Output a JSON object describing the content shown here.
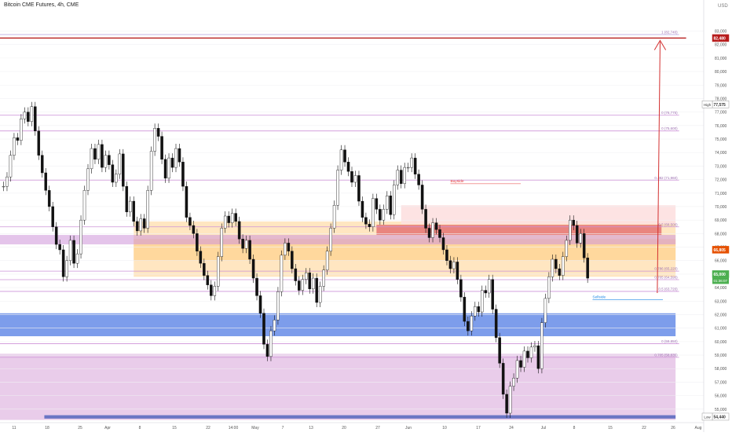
{
  "header": {
    "title": "Bitcoin CME Futures, 4h, CME",
    "currency": "USD"
  },
  "chart_data": {
    "type": "candlestick",
    "title": "Bitcoin CME Futures, 4h, CME",
    "ylim": [
      54000,
      84600
    ],
    "y_ticks": [
      55000,
      56000,
      57000,
      58000,
      59000,
      60000,
      61000,
      62000,
      63000,
      64000,
      65000,
      66000,
      67000,
      68000,
      69000,
      70000,
      71000,
      72000,
      73000,
      74000,
      75000,
      76000,
      77000,
      78000,
      79000,
      80000,
      81000,
      82000,
      83000
    ],
    "y_tick_labels": [
      "55,000",
      "56,000",
      "57,000",
      "58,000",
      "59,000",
      "60,000",
      "61,000",
      "62,000",
      "63,000",
      "64,000",
      "65,000",
      "66,000",
      "67,000",
      "68,000",
      "69,000",
      "70,000",
      "71,000",
      "72,000",
      "73,000",
      "74,000",
      "75,000",
      "76,000",
      "77,000",
      "78,000",
      "79,000",
      "80,000",
      "81,000",
      "82,000",
      "83,000"
    ],
    "x_labels": [
      "11",
      "18",
      "25",
      "Apr",
      "8",
      "15",
      "22",
      "14:00",
      "May",
      "7",
      "13",
      "20",
      "27",
      "Jun",
      "10",
      "17",
      "24",
      "Jul",
      "8",
      "15",
      "22",
      "26",
      "Aug"
    ],
    "x_tick_index": [
      0,
      1,
      2,
      3,
      4,
      5,
      6,
      7,
      8,
      9,
      10,
      11,
      12,
      13,
      14,
      15,
      16,
      17,
      18,
      19,
      20,
      21,
      22
    ],
    "price_badges": [
      {
        "label": "82,480",
        "value": 82480,
        "color": "#b71c1c"
      },
      {
        "label": "77,575",
        "value": 77575,
        "color": "#ffffff",
        "prefix": "High"
      },
      {
        "label": "66,805",
        "value": 66805,
        "color": "#e65100"
      },
      {
        "label": "65,000",
        "value": 65000,
        "color": "#4caf50",
        "sub": "01:36:07"
      },
      {
        "label": "54,440",
        "value": 54440,
        "color": "#ffffff",
        "prefix": "Low"
      }
    ],
    "fib_levels": [
      {
        "label": "1 (82,740)",
        "value": 82740,
        "color": "#b39ddb"
      },
      {
        "label": "0 (76,775)",
        "value": 76775,
        "color": "#ce93d8"
      },
      {
        "label": "0 (75,600)",
        "value": 75600,
        "color": "#ce93d8"
      },
      {
        "label": "0.382 (71,960)",
        "value": 71960,
        "color": "#ce93d8"
      },
      {
        "label": "0.5 (68,500)",
        "value": 68500,
        "color": "#ce93d8"
      },
      {
        "label": "0.786 (65,220)",
        "value": 65220,
        "color": "#ce93d8"
      },
      {
        "label": "0.705 (64,590)",
        "value": 64590,
        "color": "#ce93d8"
      },
      {
        "label": "0.5 (63,720)",
        "value": 63720,
        "color": "#ce93d8"
      },
      {
        "label": "0 (59,850)",
        "value": 59850,
        "color": "#ce93d8"
      },
      {
        "label": "0.705 (58,835)",
        "value": 58835,
        "color": "#ce93d8"
      }
    ],
    "annotations": [
      {
        "text": "Buyside",
        "x": 0.64,
        "value": 71750,
        "color": "#e53935"
      },
      {
        "text": "Sellside",
        "x": 0.842,
        "value": 63150,
        "color": "#1e88e5"
      }
    ],
    "series": [
      {
        "x": 0.0,
        "values": [
          71500,
          72200,
          73800,
          75100,
          74900,
          76500,
          77000,
          76300,
          77400,
          75600,
          73800,
          72500,
          71200,
          70000,
          68500,
          67200,
          66800,
          64800,
          66000,
          67500,
          65800,
          66500,
          69000,
          71200,
          72800,
          74300,
          73500,
          74600,
          72900,
          73800,
          73100,
          71800,
          72400,
          73900,
          71500,
          69600,
          70400,
          68900,
          68200,
          69100,
          68400,
          71200,
          74100,
          75800,
          75200,
          73500,
          72100,
          73600,
          72900,
          74300,
          73300,
          71500,
          69200,
          68600,
          68000,
          66700,
          65800,
          64900,
          64200,
          63400,
          64100,
          66300,
          68400,
          69300,
          68800,
          69500,
          68900,
          67600,
          66900,
          67500,
          66100,
          64700,
          63400,
          62100,
          59800,
          58900,
          60800,
          61600,
          63700,
          66400,
          67300,
          66700,
          65400,
          64500,
          63800,
          64600,
          65100,
          63900,
          64700,
          62900,
          64100,
          65300,
          66700,
          68400,
          70100,
          72700,
          74200,
          73300,
          72600,
          71800,
          72300,
          70400,
          69200,
          68700,
          68500,
          70600,
          69800,
          69000,
          69800,
          70800,
          69400,
          71600,
          72700,
          71700,
          72900,
          72900,
          73600,
          72400,
          71600,
          69800,
          68400,
          67700,
          68800,
          68300,
          67700,
          66800,
          66000,
          65400,
          65900,
          64600,
          63300,
          61500,
          60800,
          61900,
          62600,
          62200,
          63800,
          63600,
          64600,
          62400,
          60300,
          58400,
          56100,
          54700,
          56700,
          57300,
          58600,
          58100,
          59300,
          58800,
          59600,
          59700,
          58000,
          61400,
          63200,
          64800,
          66100,
          65400,
          64900,
          66300,
          67500,
          69000,
          68600,
          67300,
          68000,
          66200,
          64700
        ]
      }
    ]
  }
}
